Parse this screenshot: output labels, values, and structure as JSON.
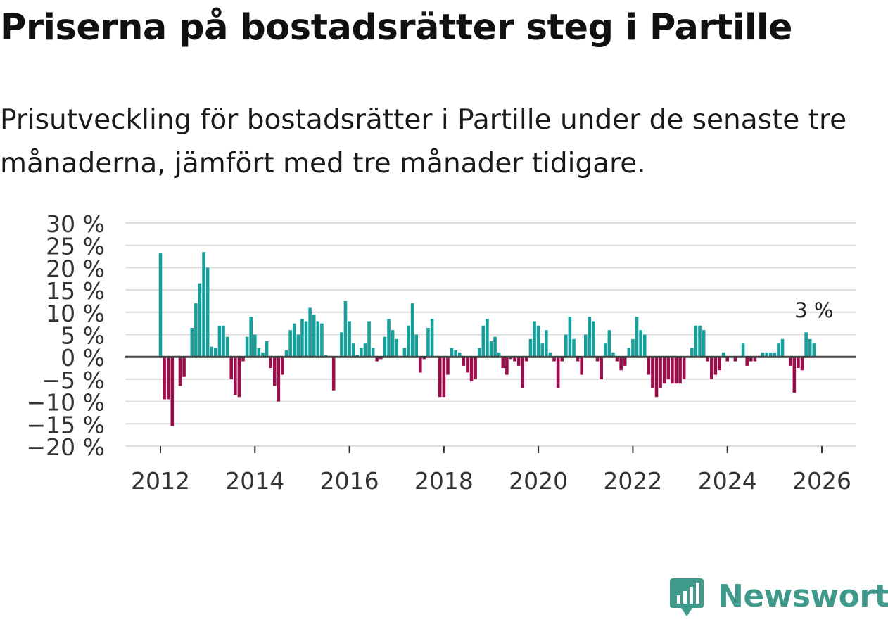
{
  "title": "Priserna på bostadsrätter steg i Partille",
  "subtitle": "Prisutveckling för bostadsrätter i Partille under de senaste tre månaderna, jämfört med tre månader tidigare.",
  "brand": {
    "name": "Newsworthy",
    "color": "#3f9a8c"
  },
  "colors": {
    "positive": "#17a09b",
    "negative": "#9c0d4b",
    "grid": "#dddddd",
    "zero": "#444444"
  },
  "chart_data": {
    "type": "bar",
    "title": "Priserna på bostadsrätter steg i Partille",
    "xlabel": "",
    "ylabel": "",
    "ylim": [
      -20,
      30
    ],
    "x_start": {
      "year": 2012,
      "month": 1
    },
    "x_ticks": [
      "2012",
      "2014",
      "2016",
      "2018",
      "2020",
      "2022",
      "2024",
      "2026"
    ],
    "y_ticks": [
      "30 %",
      "25 %",
      "20 %",
      "15 %",
      "10 %",
      "5 %",
      "0 %",
      "−5 %",
      "−10 %",
      "−15 %",
      "−20 %"
    ],
    "annotation": {
      "text": "3 %",
      "value": 3,
      "series_index": 166
    },
    "values": [
      23.2,
      -9.5,
      -9.5,
      -15.5,
      -0.2,
      -6.5,
      -4.5,
      0.0,
      6.5,
      12.0,
      16.5,
      23.5,
      20.0,
      2.3,
      2.0,
      7.0,
      7.0,
      4.5,
      -5.0,
      -8.5,
      -9.0,
      -1.0,
      4.5,
      9.0,
      5.0,
      2.0,
      1.0,
      3.5,
      -2.5,
      -6.5,
      -10.0,
      -4.0,
      1.5,
      6.0,
      7.5,
      5.0,
      8.5,
      8.0,
      11.0,
      9.5,
      8.0,
      7.5,
      0.5,
      0.0,
      -7.5,
      0.0,
      5.5,
      12.5,
      8.0,
      3.0,
      0.5,
      2.0,
      3.0,
      8.0,
      2.0,
      -1.0,
      -0.5,
      4.5,
      8.5,
      6.0,
      4.0,
      0.0,
      2.0,
      7.0,
      12.0,
      5.0,
      -3.5,
      -0.5,
      6.5,
      8.5,
      0.0,
      -9.0,
      -9.0,
      -4.0,
      2.0,
      1.5,
      1.0,
      -2.0,
      -3.5,
      -5.5,
      -5.0,
      2.0,
      7.0,
      8.5,
      3.5,
      4.5,
      1.0,
      -2.5,
      -4.0,
      -0.5,
      -1.0,
      -2.0,
      -7.0,
      -1.0,
      4.0,
      8.0,
      7.0,
      3.0,
      6.0,
      1.0,
      -1.0,
      -7.0,
      -1.0,
      5.0,
      9.0,
      4.0,
      -1.0,
      -4.0,
      5.0,
      9.0,
      8.0,
      -1.0,
      -5.0,
      3.0,
      6.0,
      1.0,
      -1.0,
      -3.0,
      -2.0,
      2.0,
      4.0,
      9.0,
      6.0,
      5.0,
      -4.0,
      -7.0,
      -9.0,
      -7.0,
      -6.0,
      -5.0,
      -6.0,
      -6.0,
      -6.0,
      -5.0,
      0.0,
      2.0,
      7.0,
      7.0,
      6.0,
      -1.0,
      -5.0,
      -4.0,
      -3.0,
      1.0,
      -1.0,
      0.0,
      -1.0,
      0.0,
      3.0,
      -2.0,
      -1.0,
      -1.0,
      0.0,
      1.0,
      1.0,
      1.0,
      1.0,
      3.0,
      4.0,
      0.0,
      -2.0,
      -8.0,
      -2.5,
      -3.0,
      5.5,
      4.0,
      3.0
    ]
  }
}
